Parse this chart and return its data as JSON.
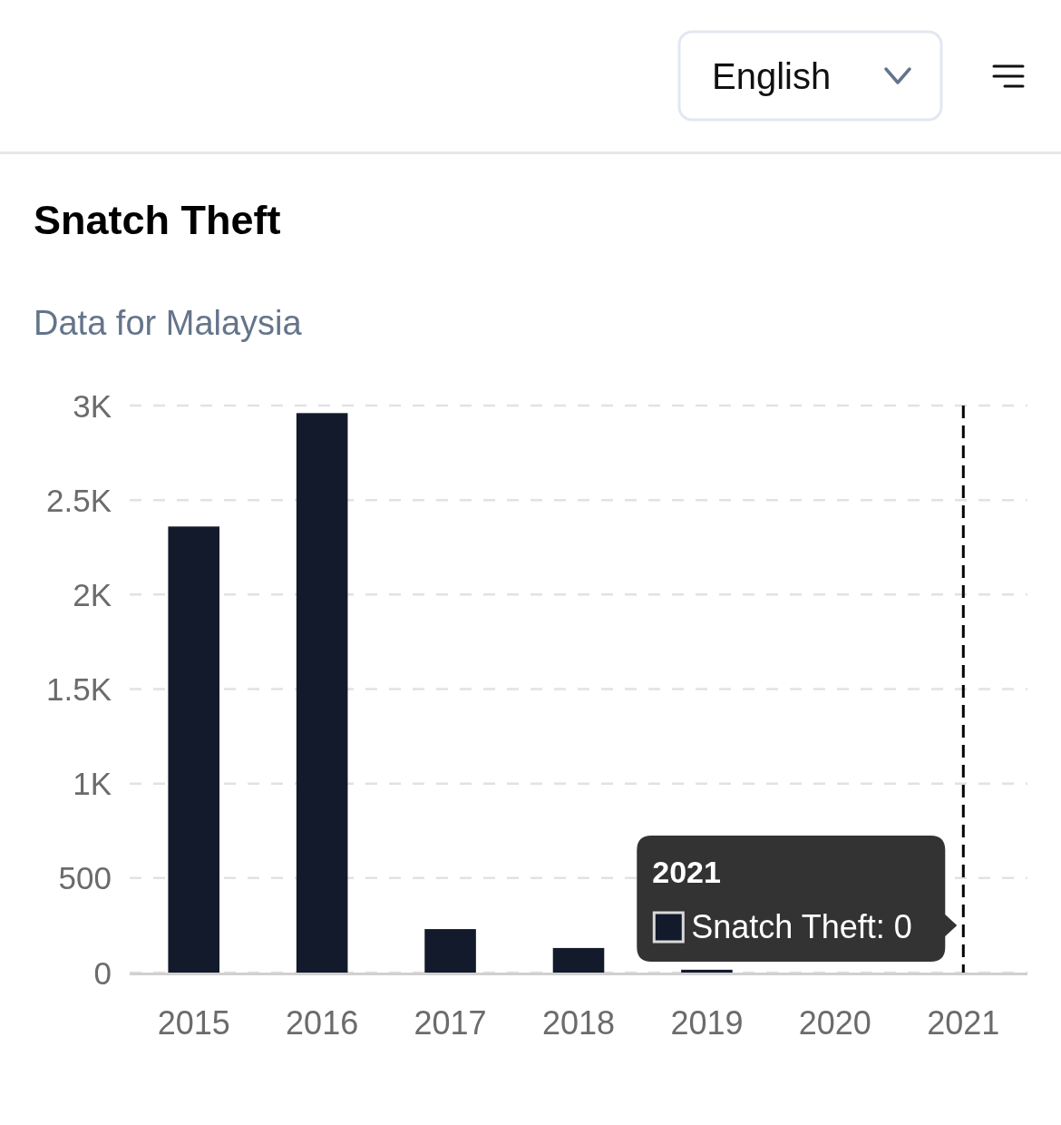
{
  "chart_data": {
    "type": "bar",
    "title": "Snatch Theft",
    "subtitle": "Data for Malaysia",
    "categories": [
      "2015",
      "2016",
      "2017",
      "2018",
      "2019",
      "2020",
      "2021"
    ],
    "values": [
      2360,
      2960,
      230,
      130,
      15,
      0,
      0
    ],
    "color": "#131a2b",
    "ylim": [
      0,
      3000
    ],
    "yticks": [
      0,
      500,
      {
        "value": 1000,
        "label": "1K"
      },
      {
        "value": 1500,
        "label": "1.5K"
      },
      {
        "value": 2000,
        "label": "2K"
      },
      {
        "value": 2500,
        "label": "2.5K"
      },
      {
        "value": 3000,
        "label": "3K"
      }
    ],
    "grid": "y",
    "ref_lines": [
      {
        "axis": "x",
        "value": "2021",
        "color": "#000000",
        "line_style": "dashed"
      }
    ],
    "annotations": [
      "English",
      "2021",
      "Snatch Theft: 0"
    ]
  }
}
